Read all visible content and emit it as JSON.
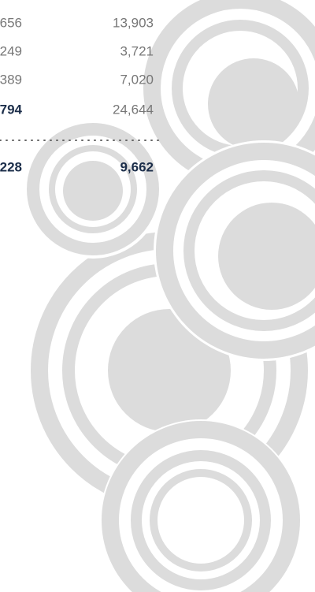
{
  "table": {
    "rows": [
      [
        "656",
        "13,903"
      ],
      [
        "249",
        "3,721"
      ],
      [
        "389",
        "7,020"
      ],
      [
        "794",
        "24,644"
      ],
      [
        "228",
        "9,662"
      ]
    ]
  }
}
